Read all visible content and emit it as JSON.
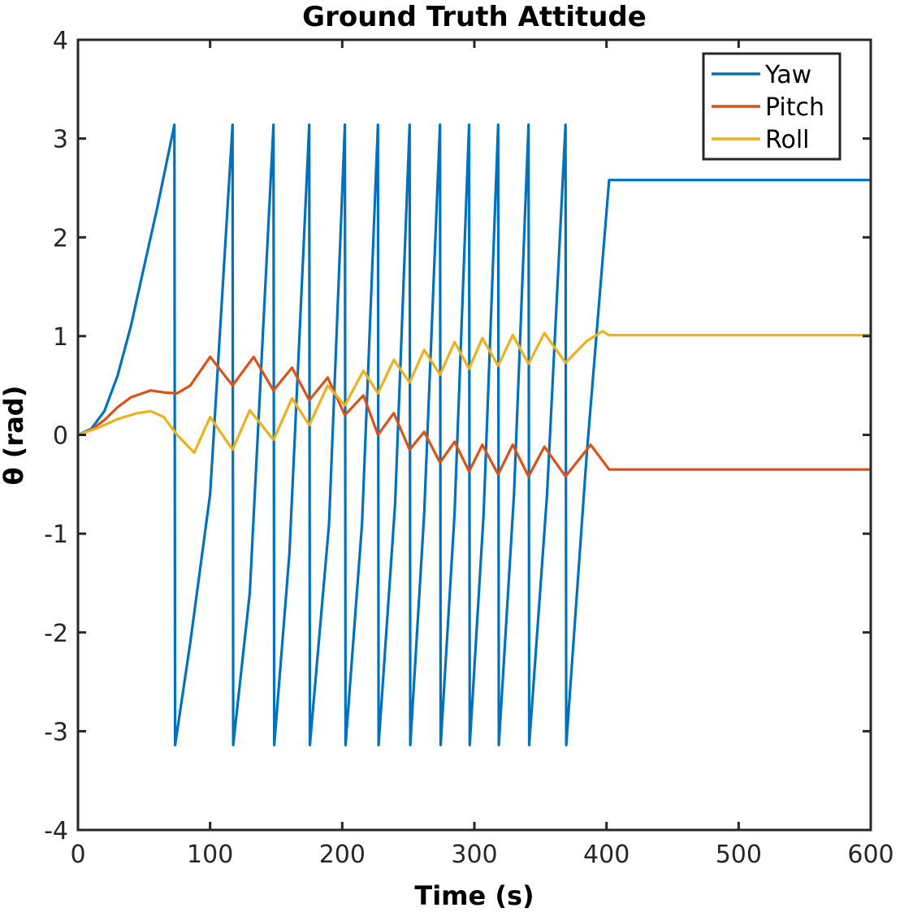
{
  "chart_data": {
    "type": "line",
    "title": "Ground Truth Attitude",
    "xlabel": "Time (s)",
    "ylabel": "θ (rad)",
    "xlim": [
      0,
      600
    ],
    "ylim": [
      -4,
      4
    ],
    "x_ticks": [
      0,
      100,
      200,
      300,
      400,
      500,
      600
    ],
    "y_ticks": [
      -4,
      -3,
      -2,
      -1,
      0,
      1,
      2,
      3,
      4
    ],
    "grid": false,
    "legend_position": "top-right",
    "series": [
      {
        "name": "Yaw",
        "color": "#0072BD",
        "x": [
          0,
          10,
          20,
          30,
          40,
          50,
          60,
          73,
          73.5,
          85,
          100,
          117,
          117.5,
          130,
          148,
          148.5,
          160,
          175,
          175.5,
          190,
          202,
          202.5,
          215,
          227,
          227.5,
          240,
          251,
          251.5,
          262,
          274,
          274.5,
          285,
          296,
          296.5,
          307,
          318,
          318.5,
          330,
          341,
          341.5,
          355,
          369,
          369.5,
          385,
          402,
          600
        ],
        "y": [
          0,
          0.06,
          0.24,
          0.6,
          1.1,
          1.7,
          2.3,
          3.14,
          -3.14,
          -2.1,
          -0.6,
          3.14,
          -3.14,
          -1.6,
          3.14,
          -3.14,
          -1.2,
          3.14,
          -3.14,
          -0.9,
          3.14,
          -3.14,
          -0.9,
          3.14,
          -3.14,
          -0.7,
          3.14,
          -3.14,
          -0.8,
          3.14,
          -3.14,
          -0.8,
          3.14,
          -3.14,
          -0.8,
          3.14,
          -3.14,
          -0.6,
          3.14,
          -3.14,
          -0.6,
          3.14,
          -3.14,
          -0.2,
          2.58,
          2.58
        ]
      },
      {
        "name": "Pitch",
        "color": "#D95319",
        "x": [
          0,
          10,
          20,
          30,
          40,
          55,
          65,
          75,
          85,
          100,
          117,
          133,
          148,
          162,
          175,
          189,
          202,
          216,
          227,
          239,
          251,
          262,
          274,
          285,
          296,
          306,
          318,
          329,
          341,
          353,
          369,
          388,
          402,
          600
        ],
        "y": [
          0,
          0.05,
          0.15,
          0.28,
          0.38,
          0.45,
          0.43,
          0.42,
          0.5,
          0.79,
          0.5,
          0.79,
          0.45,
          0.68,
          0.35,
          0.58,
          0.2,
          0.4,
          0.0,
          0.22,
          -0.15,
          0.03,
          -0.28,
          -0.07,
          -0.37,
          -0.1,
          -0.4,
          -0.1,
          -0.42,
          -0.12,
          -0.42,
          -0.1,
          -0.35,
          -0.35
        ]
      },
      {
        "name": "Roll",
        "color": "#EDB120",
        "x": [
          0,
          15,
          30,
          45,
          55,
          65,
          75,
          88,
          100,
          117,
          130,
          148,
          162,
          175,
          189,
          202,
          216,
          227,
          239,
          251,
          262,
          274,
          285,
          296,
          306,
          318,
          329,
          341,
          353,
          369,
          385,
          397,
          402,
          600
        ],
        "y": [
          0,
          0.07,
          0.16,
          0.22,
          0.24,
          0.18,
          0.0,
          -0.18,
          0.18,
          -0.15,
          0.25,
          -0.05,
          0.37,
          0.1,
          0.5,
          0.3,
          0.65,
          0.42,
          0.76,
          0.53,
          0.86,
          0.61,
          0.94,
          0.67,
          0.98,
          0.7,
          1.01,
          0.72,
          1.03,
          0.73,
          0.95,
          1.05,
          1.01,
          1.01
        ]
      }
    ]
  }
}
